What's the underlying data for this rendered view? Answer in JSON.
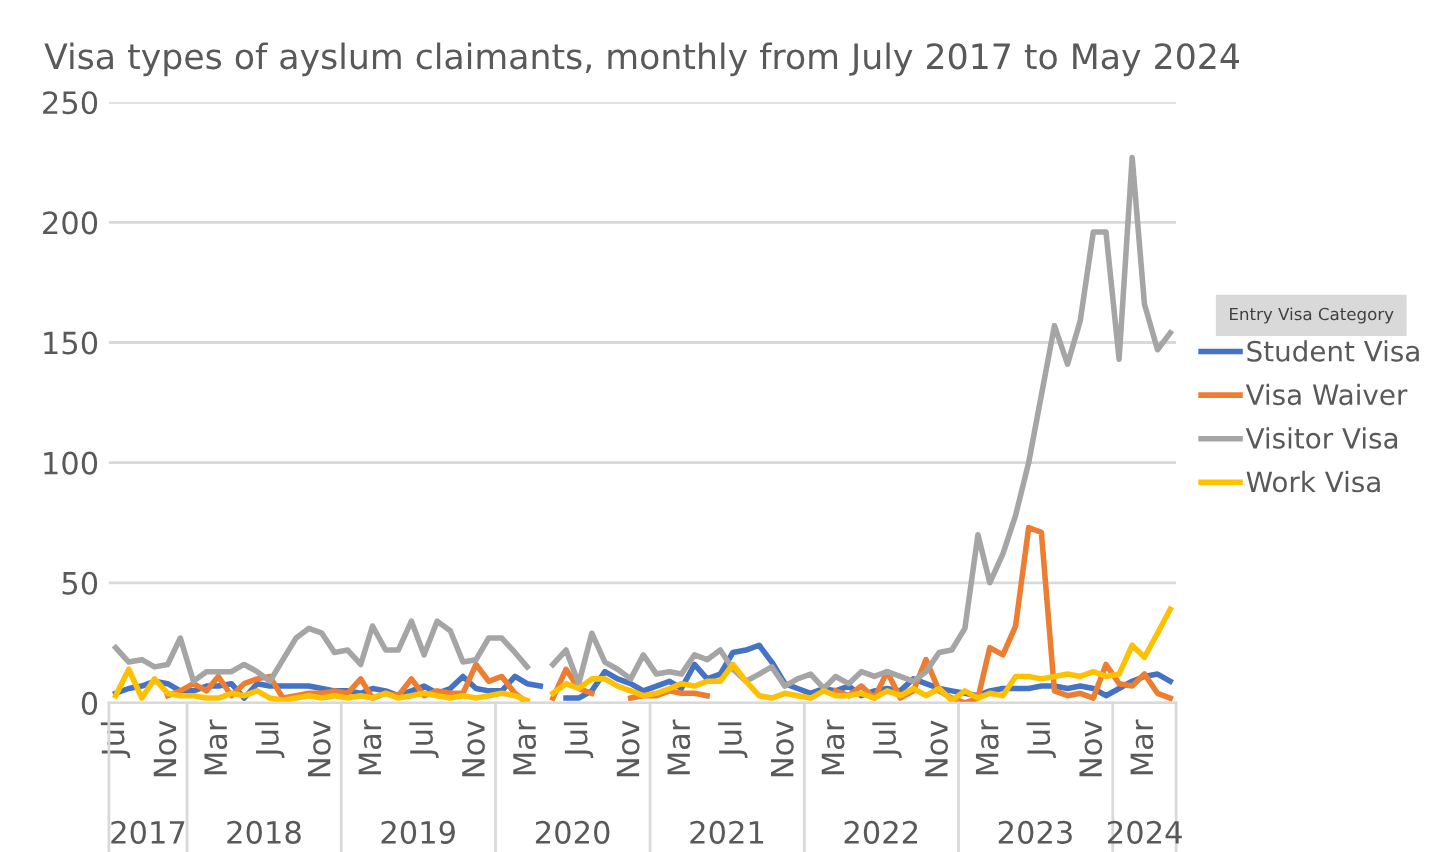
{
  "chart_data": {
    "type": "line",
    "title": "Visa types of ayslum claimants, monthly from July 2017 to May 2024",
    "x": [
      "2017-07",
      "2017-08",
      "2017-09",
      "2017-10",
      "2017-11",
      "2017-12",
      "2018-01",
      "2018-02",
      "2018-03",
      "2018-04",
      "2018-05",
      "2018-06",
      "2018-07",
      "2018-08",
      "2018-09",
      "2018-10",
      "2018-11",
      "2018-12",
      "2019-01",
      "2019-02",
      "2019-03",
      "2019-04",
      "2019-05",
      "2019-06",
      "2019-07",
      "2019-08",
      "2019-09",
      "2019-10",
      "2019-11",
      "2019-12",
      "2020-01",
      "2020-02",
      "2020-03",
      "2020-04",
      "2020-05",
      "2020-06",
      "2020-07",
      "2020-08",
      "2020-09",
      "2020-10",
      "2020-11",
      "2020-12",
      "2021-01",
      "2021-02",
      "2021-03",
      "2021-04",
      "2021-05",
      "2021-06",
      "2021-07",
      "2021-08",
      "2021-09",
      "2021-10",
      "2021-11",
      "2021-12",
      "2022-01",
      "2022-02",
      "2022-03",
      "2022-04",
      "2022-05",
      "2022-06",
      "2022-07",
      "2022-08",
      "2022-09",
      "2022-10",
      "2022-11",
      "2022-12",
      "2023-01",
      "2023-02",
      "2023-03",
      "2023-04",
      "2023-05",
      "2023-06",
      "2023-07",
      "2023-08",
      "2023-09",
      "2023-10",
      "2023-11",
      "2023-12",
      "2024-01",
      "2024-02",
      "2024-03",
      "2024-04",
      "2024-05"
    ],
    "series": [
      {
        "name": "Student Visa",
        "color": "#4472c4",
        "values": [
          4,
          6,
          7,
          9,
          8,
          5,
          5,
          7,
          7,
          8,
          2,
          8,
          7,
          7,
          7,
          7,
          6,
          5,
          5,
          4,
          6,
          5,
          3,
          5,
          7,
          4,
          6,
          11,
          6,
          5,
          5,
          11,
          8,
          7,
          null,
          2,
          2,
          5,
          13,
          10,
          8,
          5,
          7,
          9,
          6,
          16,
          10,
          12,
          21,
          22,
          24,
          17,
          8,
          6,
          4,
          6,
          5,
          7,
          3,
          5,
          6,
          5,
          10,
          8,
          6,
          5,
          4,
          3,
          5,
          6,
          6,
          6,
          7,
          7,
          6,
          7,
          6,
          3,
          6,
          9,
          11,
          12,
          9
        ]
      },
      {
        "name": "Visa Waiver",
        "color": "#ed7d31",
        "values": [
          null,
          null,
          null,
          null,
          3,
          5,
          8,
          5,
          11,
          3,
          8,
          10,
          11,
          2,
          3,
          4,
          4,
          5,
          4,
          10,
          2,
          4,
          3,
          10,
          3,
          5,
          4,
          4,
          16,
          9,
          11,
          4,
          0,
          null,
          2,
          14,
          6,
          4,
          null,
          null,
          2,
          3,
          3,
          5,
          4,
          4,
          3,
          null,
          null,
          null,
          null,
          null,
          null,
          null,
          null,
          null,
          5,
          3,
          7,
          2,
          13,
          2,
          5,
          18,
          5,
          2,
          0,
          2,
          23,
          20,
          32,
          73,
          71,
          5,
          3,
          4,
          2,
          16,
          8,
          7,
          12,
          4,
          2
        ]
      },
      {
        "name": "Visitor Visa",
        "color": "#a5a5a5",
        "values": [
          23,
          17,
          18,
          15,
          16,
          27,
          9,
          13,
          13,
          13,
          16,
          13,
          9,
          18,
          27,
          31,
          29,
          21,
          22,
          16,
          32,
          22,
          22,
          34,
          20,
          34,
          30,
          17,
          18,
          27,
          27,
          21,
          15,
          null,
          16,
          22,
          8,
          29,
          17,
          14,
          10,
          20,
          12,
          13,
          12,
          20,
          18,
          22,
          14,
          9,
          12,
          15,
          7,
          10,
          12,
          6,
          11,
          8,
          13,
          11,
          13,
          11,
          9,
          13,
          21,
          22,
          31,
          70,
          50,
          62,
          78,
          100,
          128,
          157,
          141,
          159,
          196,
          196,
          143,
          227,
          166,
          147,
          154
        ]
      },
      {
        "name": "Work Visa",
        "color": "#ffc000",
        "values": [
          3,
          14,
          2,
          10,
          4,
          3,
          3,
          2,
          2,
          4,
          3,
          5,
          2,
          1,
          2,
          3,
          2,
          3,
          2,
          3,
          2,
          4,
          2,
          3,
          4,
          3,
          2,
          3,
          2,
          3,
          4,
          3,
          1,
          null,
          4,
          8,
          6,
          10,
          10,
          7,
          5,
          3,
          4,
          6,
          8,
          7,
          9,
          9,
          16,
          9,
          3,
          2,
          4,
          3,
          2,
          5,
          3,
          3,
          4,
          2,
          5,
          3,
          6,
          3,
          6,
          1,
          5,
          2,
          4,
          3,
          11,
          11,
          10,
          11,
          12,
          11,
          13,
          11,
          12,
          24,
          19,
          29,
          39
        ]
      }
    ],
    "ylim": [
      0,
      250
    ],
    "yticks": [
      0,
      50,
      100,
      150,
      200,
      250
    ],
    "xlim": [
      "2017-06-15",
      "2024-05-15"
    ],
    "xticks": [
      {
        "value": "2017-07",
        "label": "Jul"
      },
      {
        "value": "2017-11",
        "label": "Nov"
      },
      {
        "value": "2018-03",
        "label": "Mar"
      },
      {
        "value": "2018-07",
        "label": "Jul"
      },
      {
        "value": "2018-11",
        "label": "Nov"
      },
      {
        "value": "2019-03",
        "label": "Mar"
      },
      {
        "value": "2019-07",
        "label": "Jul"
      },
      {
        "value": "2019-11",
        "label": "Nov"
      },
      {
        "value": "2020-03",
        "label": "Mar"
      },
      {
        "value": "2020-07",
        "label": "Jul"
      },
      {
        "value": "2020-11",
        "label": "Nov"
      },
      {
        "value": "2021-03",
        "label": "Mar"
      },
      {
        "value": "2021-07",
        "label": "Jul"
      },
      {
        "value": "2021-11",
        "label": "Nov"
      },
      {
        "value": "2022-03",
        "label": "Mar"
      },
      {
        "value": "2022-07",
        "label": "Jul"
      },
      {
        "value": "2022-11",
        "label": "Nov"
      },
      {
        "value": "2023-03",
        "label": "Mar"
      },
      {
        "value": "2023-07",
        "label": "Jul"
      },
      {
        "value": "2023-11",
        "label": "Nov"
      },
      {
        "value": "2024-03",
        "label": "Mar"
      }
    ],
    "annotations": [
      "2017",
      "2018",
      "2019",
      "2020",
      "2021",
      "2022",
      "2023",
      "2024"
    ],
    "legend": "right",
    "legend_title": "Entry Visa Category",
    "grid": "y",
    "line_style": "solid"
  }
}
